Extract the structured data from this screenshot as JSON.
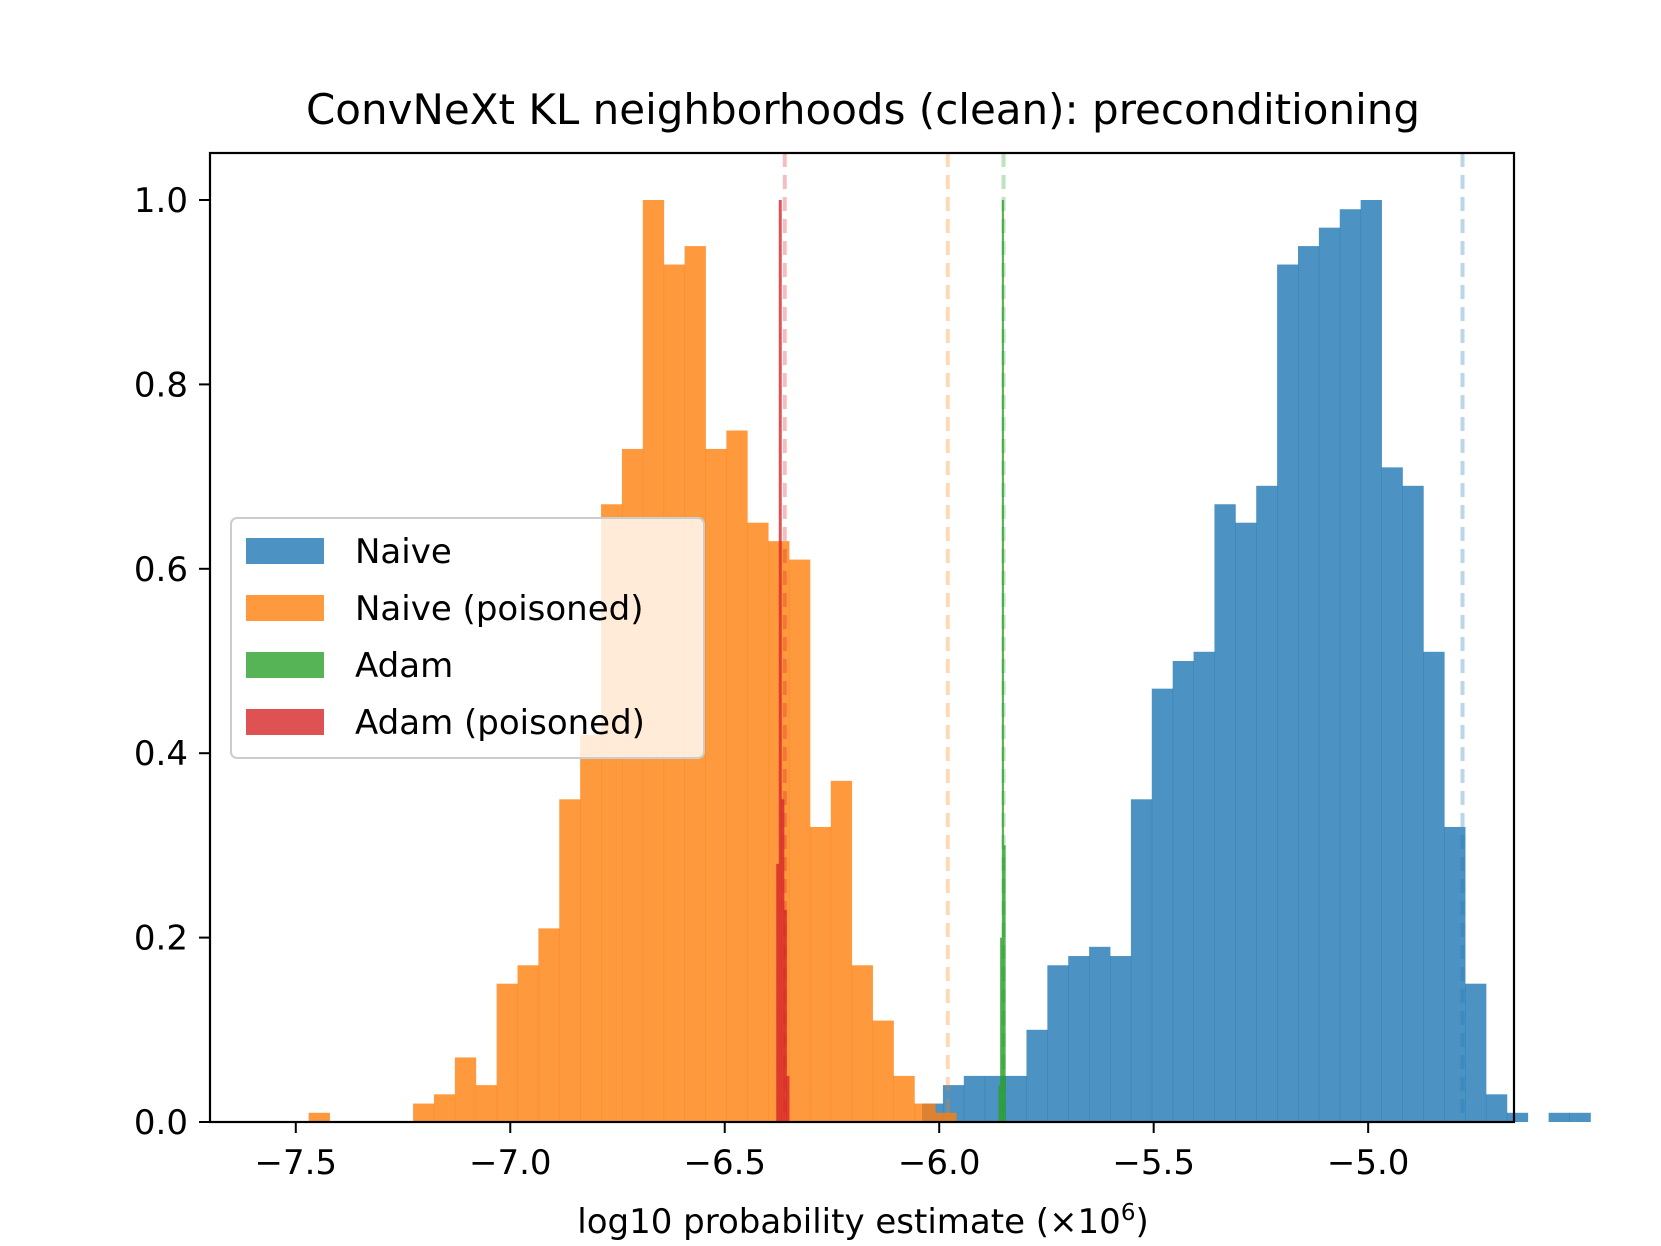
{
  "chart_data": {
    "type": "histogram",
    "title": "ConvNeXt KL neighborhoods (clean): preconditioning",
    "xlabel_main": "log10 probability estimate (×10",
    "xlabel_sup": "6",
    "xlabel_end": ")",
    "ylabel": "",
    "xlim": [
      -7.7,
      -4.66
    ],
    "ylim": [
      0,
      1.05
    ],
    "x_ticks": [
      -7.5,
      -7.0,
      -6.5,
      -6.0,
      -5.5,
      -5.0
    ],
    "x_tick_labels": [
      "−7.5",
      "−7.0",
      "−6.5",
      "−6.0",
      "−5.5",
      "−5.0"
    ],
    "y_ticks": [
      0.0,
      0.2,
      0.4,
      0.6,
      0.8,
      1.0
    ],
    "y_tick_labels": [
      "0.0",
      "0.2",
      "0.4",
      "0.6",
      "0.8",
      "1.0"
    ],
    "grid": false,
    "legend_position": "center-left",
    "series": [
      {
        "name": "Naive",
        "color": "#1f77b4",
        "bin_start": -6.04,
        "bin_width": 0.04869,
        "values": [
          0.02,
          0.04,
          0.05,
          0.05,
          0.05,
          0.1,
          0.17,
          0.18,
          0.19,
          0.18,
          0.35,
          0.47,
          0.5,
          0.51,
          0.67,
          0.65,
          0.69,
          0.93,
          0.95,
          0.97,
          0.99,
          1.0,
          0.71,
          0.69,
          0.51,
          0.32,
          0.15,
          0.03,
          0.01,
          0.0,
          0.01,
          0.01
        ]
      },
      {
        "name": "Naive (poisoned)",
        "color": "#ff7f0e",
        "bin_start": -7.47,
        "bin_width": 0.04869,
        "values": [
          0.01,
          0.0,
          0.0,
          0.0,
          0.0,
          0.02,
          0.03,
          0.07,
          0.04,
          0.15,
          0.17,
          0.21,
          0.35,
          0.42,
          0.67,
          0.73,
          1.0,
          0.93,
          0.95,
          0.73,
          0.75,
          0.65,
          0.63,
          0.61,
          0.32,
          0.37,
          0.17,
          0.11,
          0.05,
          0.02,
          0.01
        ]
      },
      {
        "name": "Adam",
        "color": "#2ca02c",
        "bin_start": -5.862,
        "bin_width": 0.004,
        "values": [
          0.04,
          0.2,
          1.0,
          0.3
        ]
      },
      {
        "name": "Adam (poisoned)",
        "color": "#d62728",
        "bin_start": -6.38,
        "bin_width": 0.006,
        "values": [
          0.28,
          1.0,
          0.35,
          0.23,
          0.05
        ]
      }
    ],
    "reference_lines": [
      {
        "series": "Naive",
        "x": -4.78
      },
      {
        "series": "Naive (poisoned)",
        "x": -5.98
      },
      {
        "series": "Adam",
        "x": -5.85
      },
      {
        "series": "Adam (poisoned)",
        "x": -6.36
      }
    ]
  }
}
